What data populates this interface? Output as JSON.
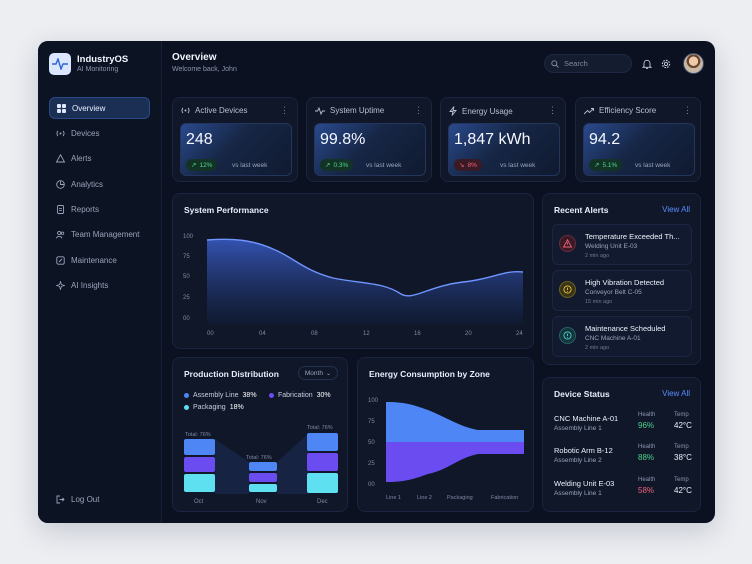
{
  "app": {
    "name": "IndustryOS",
    "subtitle": "AI Monitoring"
  },
  "sidebar": {
    "items": [
      {
        "label": "Overview",
        "icon": "grid-icon"
      },
      {
        "label": "Devices",
        "icon": "radio-tower-icon"
      },
      {
        "label": "Alerts",
        "icon": "warning-triangle-icon"
      },
      {
        "label": "Analytics",
        "icon": "chart-icon"
      },
      {
        "label": "Reports",
        "icon": "document-icon"
      },
      {
        "label": "Team Management",
        "icon": "users-icon"
      },
      {
        "label": "Maintenance",
        "icon": "wrench-icon"
      },
      {
        "label": "AI Insights",
        "icon": "sparkle-icon"
      }
    ],
    "active": "Overview",
    "logout_label": "Log Out"
  },
  "header": {
    "title": "Overview",
    "subtitle": "Welcome back, John",
    "search_placeholder": "Search"
  },
  "kpis": [
    {
      "title": "Active Devices",
      "value": "248",
      "change": "12%",
      "trend": "up",
      "vs": "vs last week"
    },
    {
      "title": "System Uptime",
      "value": "99.8%",
      "change": "0.3%",
      "trend": "up",
      "vs": "vs last week"
    },
    {
      "title": "Energy Usage",
      "value": "1,847 kWh",
      "change": "8%",
      "trend": "down",
      "vs": "vs last week"
    },
    {
      "title": "Efficiency Score",
      "value": "94.2",
      "change": "5.1%",
      "trend": "up",
      "vs": "vs last week"
    }
  ],
  "performance": {
    "title": "System Performance",
    "y_ticks": [
      "100",
      "75",
      "50",
      "25",
      "00"
    ],
    "x_ticks": [
      "00",
      "04",
      "08",
      "12",
      "16",
      "20",
      "24"
    ]
  },
  "alerts": {
    "title": "Recent Alerts",
    "view_all": "View All",
    "items": [
      {
        "title": "Temperature Exceeded Th...",
        "device": "Welding Unit E-03",
        "time": "2 min ago",
        "level": "critical"
      },
      {
        "title": "High Vibration Detected",
        "device": "Conveyor Belt C-05",
        "time": "15 min ago",
        "level": "warning"
      },
      {
        "title": "Maintenance Scheduled",
        "device": "CNC Machine A-01",
        "time": "2 min ago",
        "level": "info"
      }
    ]
  },
  "production": {
    "title": "Production Distribution",
    "period": "Month",
    "legend": [
      {
        "name": "Assembly Line",
        "value": "38%"
      },
      {
        "name": "Fabrication",
        "value": "30%"
      },
      {
        "name": "Packaging",
        "value": "18%"
      }
    ],
    "bars": [
      {
        "label": "Oct",
        "total": "Total: 76%"
      },
      {
        "label": "Nov",
        "total": "Total: 76%"
      },
      {
        "label": "Dec",
        "total": "Total: 76%"
      }
    ]
  },
  "energy": {
    "title": "Energy Consumption by Zone",
    "y_ticks": [
      "100",
      "75",
      "50",
      "25",
      "00"
    ],
    "zones": [
      "Line 1",
      "Line 2",
      "Packaging",
      "Fabrication"
    ]
  },
  "devices": {
    "title": "Device Status",
    "view_all": "View All",
    "health_label": "Health",
    "temp_label": "Temp",
    "items": [
      {
        "name": "CNC Machine A-01",
        "line": "Assembly Line 1",
        "health": "96%",
        "temp": "42°C",
        "health_color": "#4ed58c"
      },
      {
        "name": "Robotic Arm B-12",
        "line": "Assembly Line 2",
        "health": "88%",
        "temp": "38°C",
        "health_color": "#4ed58c"
      },
      {
        "name": "Welding Unit E-03",
        "line": "Assembly Line 1",
        "health": "58%",
        "temp": "42°C",
        "health_color": "#f0627a"
      }
    ]
  },
  "colors": {
    "accent": "#3f6fe0",
    "assembly": "#4f86f5",
    "fabrication": "#6a4cf0",
    "packaging": "#5ee0f0"
  }
}
